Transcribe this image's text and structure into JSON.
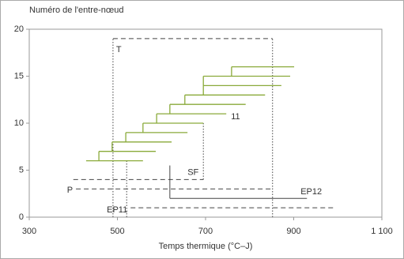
{
  "chart_data": {
    "type": "step",
    "y_label": "Numéro de l'entre-nœud",
    "x_label": "Temps thermique (°C–J)",
    "xlim": [
      300,
      1100
    ],
    "xticks": [
      300,
      500,
      700,
      900,
      {
        "value": 1100,
        "label": "1 100"
      }
    ],
    "ylim": [
      0,
      20
    ],
    "yticks": [
      0,
      5,
      10,
      15,
      20
    ],
    "series": [
      {
        "color": "#8aaa3a",
        "segments": [
          {
            "y": 6,
            "x": [
              429,
              558
            ]
          },
          {
            "y": 7,
            "x": [
              458,
              587
            ]
          },
          {
            "y": 8,
            "x": [
              488,
              623
            ]
          },
          {
            "y": 9,
            "x": [
              519,
              659
            ]
          },
          {
            "y": 10,
            "x": [
              558,
              695
            ]
          },
          {
            "y": 11,
            "x": [
              589,
              747
            ]
          },
          {
            "y": 12,
            "x": [
              619,
              791
            ]
          },
          {
            "y": 13,
            "x": [
              653,
              835
            ]
          },
          {
            "y": 14,
            "x": [
              695,
              872
            ]
          },
          {
            "y": 15,
            "x": [
              695,
              892
            ]
          },
          {
            "y": 16,
            "x": [
              759,
              901
            ]
          }
        ]
      }
    ],
    "annotations": [
      {
        "text": "11",
        "x": 747,
        "y": 11
      }
    ],
    "reference_lines": [
      {
        "label": "T",
        "y": 19,
        "x": [
          490,
          852
        ],
        "style": "dashed"
      },
      {
        "label": "SF",
        "y": 4,
        "x": [
          400,
          695
        ],
        "style": "dashed"
      },
      {
        "label": "P",
        "y": 3,
        "x": [
          406,
          852
        ],
        "style": "dashed"
      },
      {
        "label": "EP12",
        "y": 2,
        "x": [
          619,
          930
        ],
        "style": "solid"
      },
      {
        "label": "EP11",
        "y": 1,
        "x": [
          530,
          994
        ],
        "style": "dashed"
      }
    ],
    "vertical_lines": [
      {
        "x": 490,
        "y": [
          0,
          19
        ],
        "style": "dotted"
      },
      {
        "x": 852,
        "y": [
          0,
          19
        ],
        "style": "dotted"
      },
      {
        "x": 521,
        "y": [
          0,
          6
        ],
        "style": "dotted"
      },
      {
        "x": 695,
        "y": [
          4,
          10
        ],
        "style": "dotted"
      },
      {
        "x": 619,
        "y": [
          2,
          5.5
        ],
        "style": "solid"
      }
    ],
    "line_color": "#444"
  }
}
